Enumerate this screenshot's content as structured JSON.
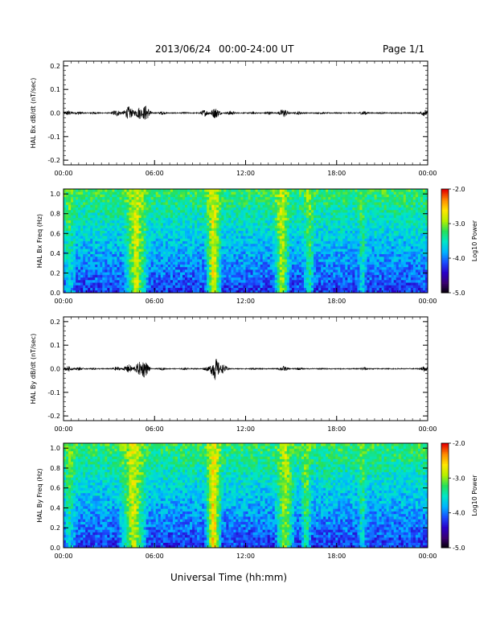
{
  "header": {
    "date": "2013/06/24",
    "time_range": "00:00-24:00 UT",
    "page": "Page 1/1"
  },
  "footer": {
    "xlabel": "Universal Time (hh:mm)"
  },
  "colors": {
    "trace": "#000000",
    "colormap": [
      "#000000",
      "#3a0070",
      "#2a00c8",
      "#1a4dff",
      "#00b4ff",
      "#00e6c8",
      "#25e05a",
      "#b4f000",
      "#ffe600",
      "#ff8c00",
      "#e60000"
    ]
  },
  "chart_data": [
    {
      "type": "line",
      "ylabel": "HAL Bx dB/dt (nT/sec)",
      "xlabel": "",
      "x_ticks": [
        "00:00",
        "06:00",
        "12:00",
        "18:00",
        "00:00"
      ],
      "x_range_hours": [
        0,
        24
      ],
      "ylim": [
        -0.22,
        0.22
      ],
      "y_ticks": [
        "-0.2",
        "-0.1",
        "0.0",
        "0.1",
        "0.2"
      ],
      "activity_envelope": [
        {
          "t": 0.3,
          "amp": 0.012
        },
        {
          "t": 1.0,
          "amp": 0.008
        },
        {
          "t": 2.0,
          "amp": 0.006
        },
        {
          "t": 3.5,
          "amp": 0.015
        },
        {
          "t": 4.3,
          "amp": 0.03
        },
        {
          "t": 5.0,
          "amp": 0.028
        },
        {
          "t": 5.4,
          "amp": 0.035
        },
        {
          "t": 6.5,
          "amp": 0.008
        },
        {
          "t": 8.0,
          "amp": 0.005
        },
        {
          "t": 9.3,
          "amp": 0.015
        },
        {
          "t": 10.0,
          "amp": 0.025
        },
        {
          "t": 11.0,
          "amp": 0.01
        },
        {
          "t": 12.5,
          "amp": 0.006
        },
        {
          "t": 13.5,
          "amp": 0.008
        },
        {
          "t": 14.5,
          "amp": 0.02
        },
        {
          "t": 15.5,
          "amp": 0.008
        },
        {
          "t": 17.0,
          "amp": 0.005
        },
        {
          "t": 19.8,
          "amp": 0.01
        },
        {
          "t": 21.0,
          "amp": 0.004
        },
        {
          "t": 23.8,
          "amp": 0.015
        }
      ]
    },
    {
      "type": "heatmap",
      "ylabel": "HAL Bx Freq (Hz)",
      "x_ticks": [
        "00:00",
        "06:00",
        "12:00",
        "18:00",
        "00:00"
      ],
      "x_range_hours": [
        0,
        24
      ],
      "ylim": [
        0.0,
        1.05
      ],
      "y_ticks": [
        "0.0",
        "0.2",
        "0.4",
        "0.6",
        "0.8",
        "1.0"
      ],
      "colorbar": {
        "label": "Log10 Power",
        "ticks": [
          "-2.0",
          "-3.0",
          "-4.0",
          "-5.0"
        ],
        "range": [
          -5.0,
          -2.0
        ]
      },
      "active_intervals": [
        {
          "t": 0.4,
          "width": 0.5,
          "strength": 0.3
        },
        {
          "t": 4.8,
          "width": 0.9,
          "strength": 0.8
        },
        {
          "t": 9.9,
          "width": 0.6,
          "strength": 0.9
        },
        {
          "t": 14.4,
          "width": 0.6,
          "strength": 0.75
        },
        {
          "t": 16.2,
          "width": 0.4,
          "strength": 0.45
        },
        {
          "t": 19.7,
          "width": 0.3,
          "strength": 0.35
        }
      ]
    },
    {
      "type": "line",
      "ylabel": "HAL By dB/dt (nT/sec)",
      "x_ticks": [
        "00:00",
        "06:00",
        "12:00",
        "18:00",
        "00:00"
      ],
      "x_range_hours": [
        0,
        24
      ],
      "ylim": [
        -0.22,
        0.22
      ],
      "y_ticks": [
        "-0.2",
        "-0.1",
        "0.0",
        "0.1",
        "0.2"
      ],
      "activity_envelope": [
        {
          "t": 0.3,
          "amp": 0.012
        },
        {
          "t": 1.0,
          "amp": 0.008
        },
        {
          "t": 2.0,
          "amp": 0.005
        },
        {
          "t": 3.5,
          "amp": 0.01
        },
        {
          "t": 4.3,
          "amp": 0.02
        },
        {
          "t": 5.0,
          "amp": 0.03
        },
        {
          "t": 5.3,
          "amp": 0.04
        },
        {
          "t": 6.5,
          "amp": 0.006
        },
        {
          "t": 8.0,
          "amp": 0.005
        },
        {
          "t": 9.5,
          "amp": 0.01
        },
        {
          "t": 10.0,
          "amp": 0.05
        },
        {
          "t": 10.5,
          "amp": 0.02
        },
        {
          "t": 12.5,
          "amp": 0.005
        },
        {
          "t": 14.5,
          "amp": 0.012
        },
        {
          "t": 15.5,
          "amp": 0.006
        },
        {
          "t": 17.0,
          "amp": 0.004
        },
        {
          "t": 19.8,
          "amp": 0.008
        },
        {
          "t": 23.8,
          "amp": 0.012
        }
      ]
    },
    {
      "type": "heatmap",
      "ylabel": "HAL By Freq (Hz)",
      "x_ticks": [
        "00:00",
        "06:00",
        "12:00",
        "18:00",
        "00:00"
      ],
      "x_range_hours": [
        0,
        24
      ],
      "ylim": [
        0.0,
        1.05
      ],
      "y_ticks": [
        "0.0",
        "0.2",
        "0.4",
        "0.6",
        "0.8",
        "1.0"
      ],
      "colorbar": {
        "label": "Log10 Power",
        "ticks": [
          "-2.0",
          "-3.0",
          "-4.0",
          "-5.0"
        ],
        "range": [
          -5.0,
          -2.0
        ]
      },
      "active_intervals": [
        {
          "t": 0.4,
          "width": 0.5,
          "strength": 0.35
        },
        {
          "t": 4.6,
          "width": 1.0,
          "strength": 0.8
        },
        {
          "t": 9.9,
          "width": 0.6,
          "strength": 1.0
        },
        {
          "t": 14.6,
          "width": 0.7,
          "strength": 0.7
        },
        {
          "t": 16.0,
          "width": 0.4,
          "strength": 0.5
        },
        {
          "t": 19.7,
          "width": 0.3,
          "strength": 0.4
        }
      ]
    }
  ]
}
